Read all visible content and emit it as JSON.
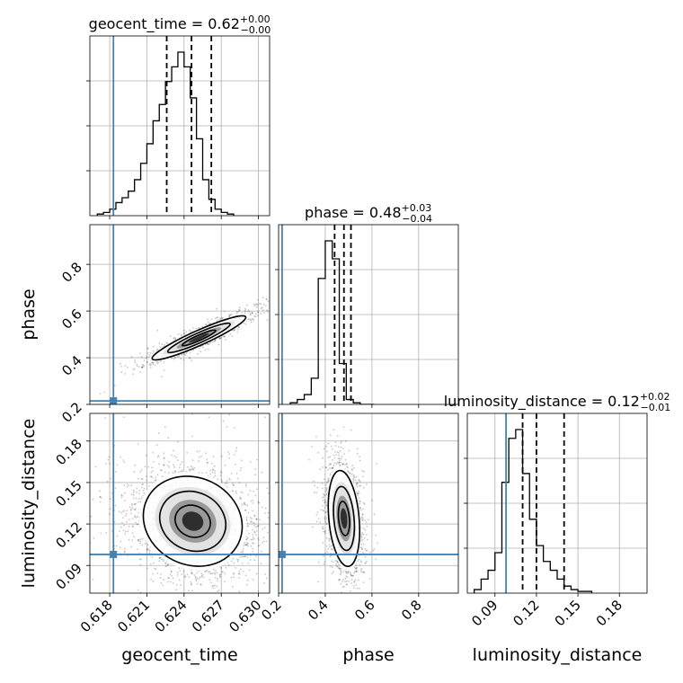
{
  "chart_data": {
    "type": "corner",
    "parameters": [
      "geocent_time",
      "phase",
      "luminosity_distance"
    ],
    "titles": [
      {
        "name": "geocent_time",
        "median": "0.62",
        "plus": "+0.00",
        "minus": "−0.00"
      },
      {
        "name": "phase",
        "median": "0.48",
        "plus": "+0.03",
        "minus": "−0.04"
      },
      {
        "name": "luminosity_distance",
        "median": "0.12",
        "plus": "+0.02",
        "minus": "−0.01"
      }
    ],
    "axis_labels": [
      "geocent_time",
      "phase",
      "luminosity_distance"
    ],
    "ranges": [
      [
        0.6164,
        0.6309
      ],
      [
        0.2,
        0.97
      ],
      [
        0.07,
        0.2
      ]
    ],
    "ticks": [
      {
        "values": [
          0.618,
          0.621,
          0.624,
          0.627,
          0.63
        ],
        "labels": [
          "0.618",
          "0.621",
          "0.624",
          "0.627",
          "0.630"
        ]
      },
      {
        "values": [
          0.2,
          0.4,
          0.6,
          0.8
        ],
        "labels": [
          "0.2",
          "0.4",
          "0.6",
          "0.8"
        ]
      },
      {
        "values": [
          0.09,
          0.12,
          0.15,
          0.18
        ],
        "labels": [
          "0.09",
          "0.12",
          "0.15",
          "0.18"
        ]
      }
    ],
    "truths": [
      0.6183,
      0.215,
      0.098
    ],
    "quantiles": [
      [
        0.6226,
        0.6246,
        0.6262
      ],
      [
        0.44,
        0.48,
        0.51
      ],
      [
        0.11,
        0.12,
        0.14
      ]
    ],
    "histograms": [
      {
        "bin_start": 0.617,
        "bin_width": 0.0005,
        "counts": [
          1,
          2,
          4,
          8,
          11,
          15,
          22,
          32,
          44,
          58,
          68,
          82,
          91,
          100,
          91,
          72,
          47,
          22,
          10,
          4,
          2,
          1
        ]
      },
      {
        "bin_start": 0.25,
        "bin_width": 0.03,
        "counts": [
          1,
          3,
          6,
          16,
          77,
          100,
          89,
          25,
          3,
          1,
          0,
          0
        ]
      },
      {
        "bin_start": 0.075,
        "bin_width": 0.005,
        "counts": [
          2,
          8,
          13,
          23,
          63,
          88,
          93,
          68,
          42,
          27,
          18,
          13,
          8,
          4,
          2,
          1,
          1
        ]
      }
    ],
    "pairs": [
      {
        "x_param": 0,
        "y_param": 1,
        "center": [
          0.6252,
          0.485
        ],
        "spread": [
          0.0018,
          0.045
        ],
        "correlation": 0.93,
        "n_samples": 2200
      },
      {
        "x_param": 0,
        "y_param": 2,
        "center": [
          0.6247,
          0.122
        ],
        "spread": [
          0.0019,
          0.0155
        ],
        "correlation": -0.12,
        "n_samples": 5000
      },
      {
        "x_param": 1,
        "y_param": 2,
        "center": [
          0.48,
          0.124
        ],
        "spread": [
          0.032,
          0.0165
        ],
        "correlation": -0.25,
        "n_samples": 3000
      }
    ]
  }
}
